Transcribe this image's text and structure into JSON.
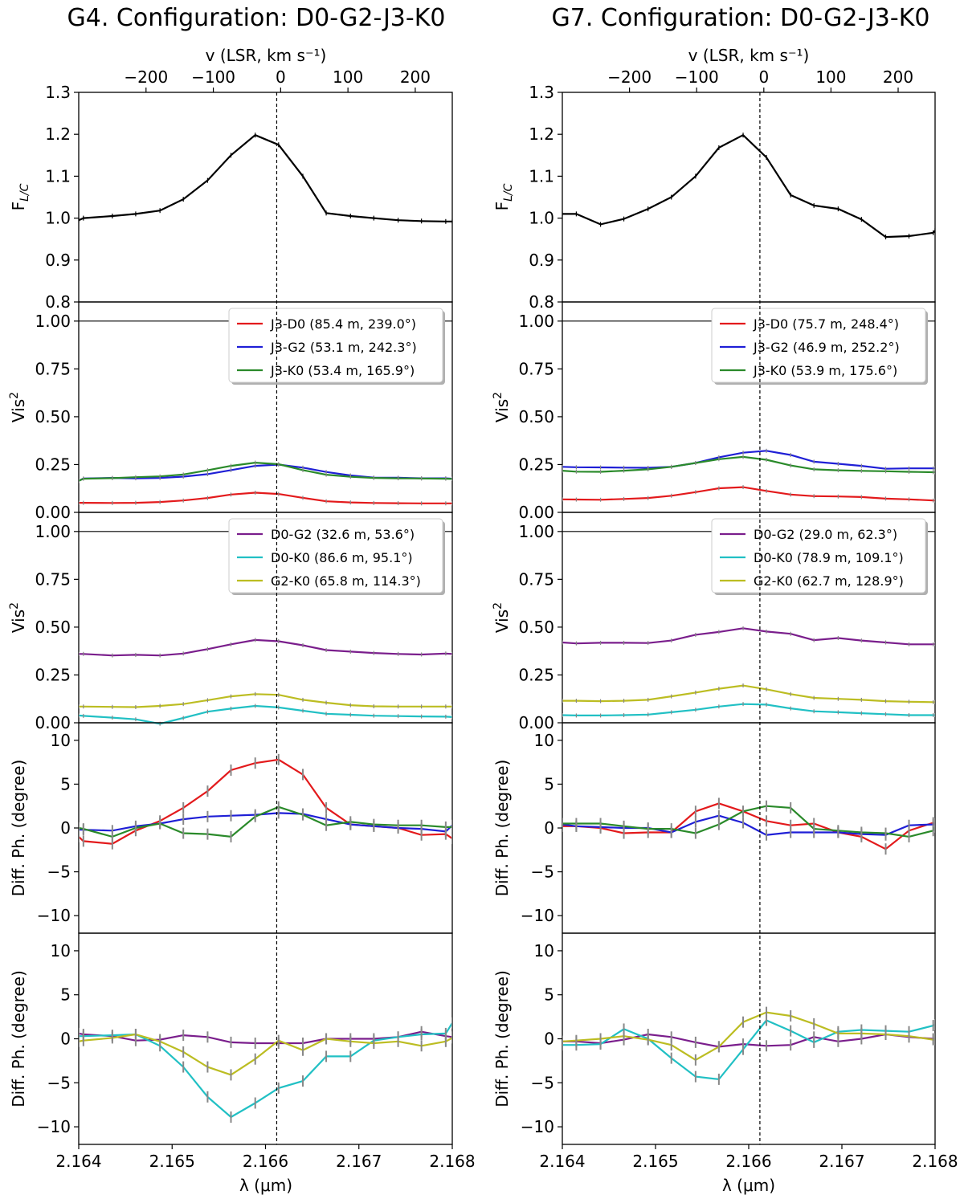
{
  "figure": {
    "xlabel": "λ (μm)",
    "xtop_label": "v (LSR, km s⁻¹)",
    "x_ticks": [
      "2.164",
      "2.165",
      "2.166",
      "2.167",
      "2.168"
    ],
    "v_ticks": [
      "−200",
      "−100",
      "0",
      "100",
      "200"
    ],
    "rows": [
      {
        "key": "flux",
        "ylabel": "F",
        "ylabel_sub": "L/C",
        "ylim": [
          0.8,
          1.3
        ],
        "ticks": [
          "0.8",
          "0.9",
          "1.0",
          "1.1",
          "1.2",
          "1.3"
        ]
      },
      {
        "key": "vis2a",
        "ylabel": "Vis",
        "ylabel_sup": "2",
        "ylim": [
          0,
          1.1
        ],
        "ticks": [
          "0.00",
          "0.25",
          "0.50",
          "0.75",
          "1.00"
        ]
      },
      {
        "key": "vis2b",
        "ylabel": "Vis",
        "ylabel_sup": "2",
        "ylim": [
          0,
          1.1
        ],
        "ticks": [
          "0.00",
          "0.25",
          "0.50",
          "0.75",
          "1.00"
        ]
      },
      {
        "key": "dphia",
        "ylabel": "Diff. Ph. (degree)",
        "ylim": [
          -12,
          12
        ],
        "ticks": [
          "−10",
          "−5",
          "0",
          "5",
          "10"
        ]
      },
      {
        "key": "dphib",
        "ylabel": "Diff. Ph. (degree)",
        "ylim": [
          -12,
          12
        ],
        "ticks": [
          "−10",
          "−5",
          "0",
          "5",
          "10"
        ]
      }
    ]
  },
  "chart_data": [
    {
      "type": "line",
      "title": "G4. Configuration: D0-G2-J3-K0",
      "xlim": [
        2.164,
        2.168
      ],
      "vlim": [
        -300,
        255
      ],
      "line_center_wavelength": 2.16612,
      "x": [
        2.164,
        2.16405,
        2.16436,
        2.16461,
        2.16487,
        2.16512,
        2.16538,
        2.16563,
        2.16589,
        2.16614,
        2.1664,
        2.16665,
        2.16691,
        2.16716,
        2.16742,
        2.16767,
        2.16793,
        2.168
      ],
      "flux": [
        {
          "name": "F_L/C",
          "color": "#000000",
          "values": [
            0.995,
            1.0,
            1.005,
            1.01,
            1.018,
            1.045,
            1.09,
            1.15,
            1.198,
            1.175,
            1.1,
            1.012,
            1.005,
            1.0,
            0.995,
            0.993,
            0.992,
            0.992
          ]
        }
      ],
      "vis2a": [
        {
          "name": "J3-D0",
          "legend": "J3-D0 (85.4 m, 239.0°)",
          "color": "#e31a1c",
          "values": [
            0.05,
            0.05,
            0.049,
            0.05,
            0.054,
            0.062,
            0.075,
            0.093,
            0.103,
            0.096,
            0.076,
            0.058,
            0.052,
            0.049,
            0.048,
            0.047,
            0.047,
            0.047
          ]
        },
        {
          "name": "J3-G2",
          "legend": "J3-G2 (53.1 m, 242.3°)",
          "color": "#1f1fd6",
          "values": [
            0.165,
            0.177,
            0.18,
            0.178,
            0.18,
            0.187,
            0.2,
            0.221,
            0.243,
            0.25,
            0.234,
            0.211,
            0.193,
            0.182,
            0.181,
            0.178,
            0.178,
            0.176
          ]
        },
        {
          "name": "J3-K0",
          "legend": "J3-K0 (53.4 m, 165.9°)",
          "color": "#2a8a2a",
          "values": [
            0.165,
            0.176,
            0.179,
            0.184,
            0.188,
            0.198,
            0.22,
            0.243,
            0.26,
            0.252,
            0.221,
            0.197,
            0.186,
            0.18,
            0.178,
            0.177,
            0.176,
            0.175
          ]
        }
      ],
      "vis2b": [
        {
          "name": "D0-G2",
          "legend": "D0-G2 (32.6 m, 53.6°)",
          "color": "#7a1e8c",
          "values": [
            0.36,
            0.36,
            0.352,
            0.355,
            0.352,
            0.362,
            0.385,
            0.41,
            0.433,
            0.426,
            0.405,
            0.38,
            0.372,
            0.365,
            0.36,
            0.357,
            0.362,
            0.36
          ]
        },
        {
          "name": "D0-K0",
          "legend": "D0-K0 (86.6 m, 95.1°)",
          "color": "#21c0c4",
          "values": [
            0.038,
            0.036,
            0.027,
            0.018,
            -0.005,
            0.025,
            0.058,
            0.074,
            0.088,
            0.08,
            0.063,
            0.047,
            0.042,
            0.037,
            0.035,
            0.033,
            0.032,
            0.03
          ]
        },
        {
          "name": "G2-K0",
          "legend": "G2-K0 (65.8 m, 114.3°)",
          "color": "#bcbd22",
          "values": [
            0.085,
            0.085,
            0.083,
            0.082,
            0.088,
            0.098,
            0.118,
            0.138,
            0.15,
            0.146,
            0.12,
            0.105,
            0.092,
            0.086,
            0.085,
            0.085,
            0.085,
            0.085
          ]
        }
      ],
      "dphia": [
        {
          "name": "J3-D0",
          "color": "#e31a1c",
          "values": [
            -1.0,
            -1.5,
            -1.8,
            -0.3,
            0.8,
            2.3,
            4.2,
            6.6,
            7.4,
            7.8,
            6.1,
            2.3,
            0.4,
            0.2,
            0.0,
            -0.8,
            -0.7,
            -1.2
          ]
        },
        {
          "name": "J3-G2",
          "color": "#1f1fd6",
          "values": [
            -0.2,
            -0.2,
            -0.3,
            0.2,
            0.5,
            1.0,
            1.3,
            1.4,
            1.5,
            1.7,
            1.6,
            1.0,
            0.4,
            0.2,
            0.0,
            -0.1,
            -0.4,
            0.3
          ]
        },
        {
          "name": "J3-K0",
          "color": "#2a8a2a",
          "values": [
            0.0,
            -0.1,
            -1.0,
            0.0,
            0.5,
            -0.6,
            -0.7,
            -1.0,
            1.3,
            2.4,
            1.5,
            0.3,
            0.7,
            0.4,
            0.3,
            0.3,
            0.1,
            0.1
          ]
        }
      ],
      "dphib": [
        {
          "name": "D0-G2",
          "color": "#7a1e8c",
          "values": [
            0.6,
            0.5,
            0.3,
            -0.2,
            -0.1,
            0.4,
            0.2,
            -0.4,
            -0.5,
            -0.5,
            -0.5,
            0.0,
            0.0,
            0.0,
            0.2,
            0.8,
            0.3,
            0.2
          ]
        },
        {
          "name": "D0-K0",
          "color": "#21c0c4",
          "values": [
            0.3,
            0.3,
            0.4,
            0.5,
            -0.8,
            -3.2,
            -6.6,
            -8.9,
            -7.3,
            -5.6,
            -4.8,
            -2.0,
            -2.0,
            -0.2,
            0.2,
            0.5,
            0.6,
            1.8
          ]
        },
        {
          "name": "G2-K0",
          "color": "#bcbd22",
          "values": [
            -0.3,
            -0.2,
            0.1,
            0.5,
            -0.3,
            -1.5,
            -3.2,
            -4.1,
            -2.3,
            -0.2,
            -1.3,
            0.0,
            -0.3,
            -0.5,
            -0.3,
            -0.8,
            -0.3,
            0.1
          ]
        }
      ]
    },
    {
      "type": "line",
      "title": "G7. Configuration: D0-G2-J3-K0",
      "xlim": [
        2.164,
        2.168
      ],
      "vlim": [
        -300,
        255
      ],
      "line_center_wavelength": 2.16612,
      "x": [
        2.164,
        2.16415,
        2.16441,
        2.16466,
        2.16492,
        2.16517,
        2.16543,
        2.16568,
        2.16594,
        2.16619,
        2.16645,
        2.1667,
        2.16696,
        2.16721,
        2.16747,
        2.16772,
        2.16798,
        2.168
      ],
      "flux": [
        {
          "name": "F_L/C",
          "color": "#000000",
          "values": [
            1.01,
            1.01,
            0.985,
            0.998,
            1.022,
            1.05,
            1.1,
            1.168,
            1.198,
            1.145,
            1.055,
            1.03,
            1.022,
            0.997,
            0.955,
            0.957,
            0.965,
            0.97
          ]
        }
      ],
      "vis2a": [
        {
          "name": "J3-D0",
          "legend": "J3-D0 (75.7 m, 248.4°)",
          "color": "#e31a1c",
          "values": [
            0.068,
            0.067,
            0.066,
            0.07,
            0.075,
            0.087,
            0.106,
            0.126,
            0.132,
            0.112,
            0.093,
            0.085,
            0.083,
            0.08,
            0.072,
            0.068,
            0.062,
            0.062
          ]
        },
        {
          "name": "J3-G2",
          "legend": "J3-G2 (46.9 m, 252.2°)",
          "color": "#1f1fd6",
          "values": [
            0.238,
            0.236,
            0.235,
            0.234,
            0.233,
            0.238,
            0.258,
            0.288,
            0.312,
            0.322,
            0.3,
            0.265,
            0.254,
            0.243,
            0.228,
            0.23,
            0.23,
            0.23
          ]
        },
        {
          "name": "J3-K0",
          "legend": "J3-K0 (53.9 m, 175.6°)",
          "color": "#2a8a2a",
          "values": [
            0.218,
            0.213,
            0.212,
            0.218,
            0.225,
            0.238,
            0.258,
            0.278,
            0.29,
            0.275,
            0.245,
            0.225,
            0.22,
            0.217,
            0.215,
            0.212,
            0.21,
            0.21
          ]
        }
      ],
      "vis2b": [
        {
          "name": "D0-G2",
          "legend": "D0-G2 (29.0 m, 62.3°)",
          "color": "#7a1e8c",
          "values": [
            0.42,
            0.415,
            0.418,
            0.418,
            0.417,
            0.43,
            0.46,
            0.475,
            0.494,
            0.477,
            0.465,
            0.432,
            0.443,
            0.43,
            0.42,
            0.41,
            0.41,
            0.412
          ]
        },
        {
          "name": "D0-K0",
          "legend": "D0-K0 (78.9 m, 109.1°)",
          "color": "#21c0c4",
          "values": [
            0.04,
            0.038,
            0.038,
            0.04,
            0.043,
            0.055,
            0.068,
            0.085,
            0.098,
            0.095,
            0.075,
            0.06,
            0.055,
            0.05,
            0.045,
            0.04,
            0.04,
            0.04
          ]
        },
        {
          "name": "G2-K0",
          "legend": "G2-K0 (62.7 m, 128.9°)",
          "color": "#bcbd22",
          "values": [
            0.115,
            0.115,
            0.113,
            0.115,
            0.12,
            0.138,
            0.158,
            0.178,
            0.195,
            0.175,
            0.15,
            0.13,
            0.125,
            0.12,
            0.113,
            0.11,
            0.108,
            0.108
          ]
        }
      ],
      "dphia": [
        {
          "name": "J3-D0",
          "color": "#e31a1c",
          "values": [
            0.2,
            0.2,
            0.0,
            -0.6,
            -0.5,
            -0.5,
            1.9,
            2.8,
            1.9,
            0.8,
            0.3,
            0.5,
            -0.5,
            -1.0,
            -2.4,
            -0.3,
            0.6,
            0.5
          ]
        },
        {
          "name": "J3-G2",
          "color": "#1f1fd6",
          "values": [
            0.4,
            0.2,
            0.1,
            0.0,
            0.0,
            -0.5,
            0.7,
            1.4,
            0.6,
            -0.8,
            -0.5,
            -0.5,
            -0.5,
            -0.7,
            -0.8,
            0.3,
            0.4,
            0.4
          ]
        },
        {
          "name": "J3-K0",
          "color": "#2a8a2a",
          "values": [
            0.5,
            0.5,
            0.5,
            0.2,
            -0.1,
            -0.1,
            -0.6,
            0.4,
            1.9,
            2.5,
            2.3,
            -0.1,
            -0.3,
            -0.5,
            -0.6,
            -1.0,
            -0.3,
            0.1
          ]
        }
      ],
      "dphib": [
        {
          "name": "D0-G2",
          "color": "#7a1e8c",
          "values": [
            -0.3,
            -0.3,
            -0.5,
            -0.1,
            0.5,
            0.2,
            -0.4,
            -0.9,
            -0.6,
            -0.8,
            -0.7,
            0.2,
            -0.3,
            0.0,
            0.5,
            0.2,
            0.0,
            0.0
          ]
        },
        {
          "name": "D0-K0",
          "color": "#21c0c4",
          "values": [
            -0.7,
            -0.7,
            -0.6,
            1.1,
            0.0,
            -2.2,
            -4.3,
            -4.6,
            -1.2,
            2.1,
            0.9,
            -0.4,
            0.8,
            1.0,
            0.9,
            0.8,
            1.5,
            1.6
          ]
        },
        {
          "name": "G2-K0",
          "color": "#bcbd22",
          "values": [
            -0.3,
            -0.2,
            0.0,
            0.3,
            -0.1,
            -0.7,
            -2.4,
            -0.9,
            1.9,
            3.0,
            2.6,
            1.7,
            0.6,
            0.6,
            0.5,
            0.3,
            -0.1,
            -0.1
          ]
        }
      ]
    }
  ]
}
